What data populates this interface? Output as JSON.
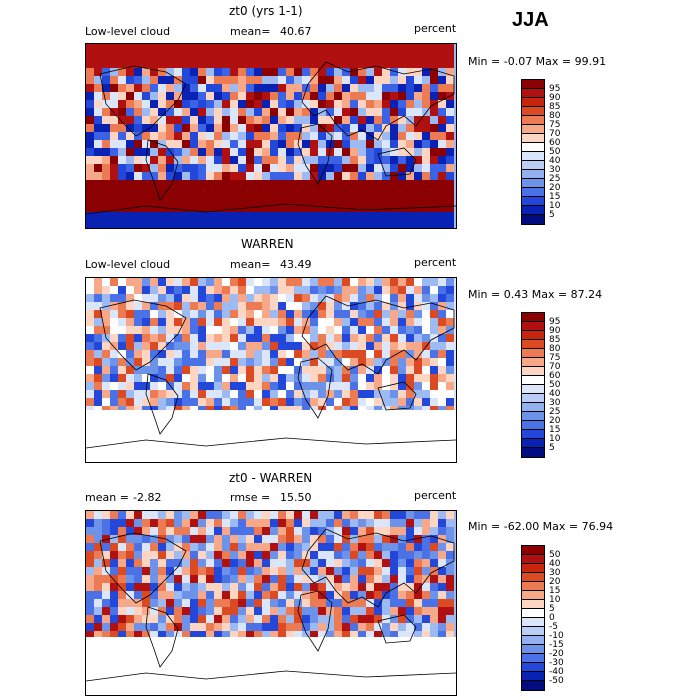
{
  "season": "JJA",
  "panels": [
    {
      "title": "zt0 (yrs 1-1)",
      "left_label": "Low-level cloud",
      "stat_label": "mean=",
      "stat_value": "40.67",
      "units": "percent",
      "minmax_label": "Min =   -0.07 Max =   99.91",
      "colorbar": {
        "labels": [
          "95",
          "90",
          "85",
          "80",
          "75",
          "70",
          "60",
          "50",
          "40",
          "30",
          "25",
          "20",
          "15",
          "10",
          "5"
        ],
        "colors": [
          "#8b0000",
          "#b01010",
          "#c8250f",
          "#dc4a24",
          "#ec7a52",
          "#f6a888",
          "#fcd6c2",
          "#ffffff",
          "#dbe6fa",
          "#b9cdf5",
          "#93b1f0",
          "#6d92ea",
          "#4a72e6",
          "#2347d9",
          "#0a22b4",
          "#000c80"
        ]
      },
      "map": {
        "colors": [
          "#0a22b4",
          "#3c63e6",
          "#9dbaf3",
          "#fcd6c2",
          "#ec7a52",
          "#b01010",
          "#2347d9",
          "#dbe6fa",
          "#f6a888",
          "#8b0000"
        ]
      }
    },
    {
      "title": "WARREN",
      "left_label": "Low-level cloud",
      "stat_label": "mean=",
      "stat_value": "43.49",
      "units": "percent",
      "minmax_label": "Min =    0.43 Max =   87.24",
      "colorbar": {
        "labels": [
          "95",
          "90",
          "85",
          "80",
          "75",
          "70",
          "60",
          "50",
          "40",
          "30",
          "25",
          "20",
          "15",
          "10",
          "5"
        ],
        "colors": [
          "#8b0000",
          "#b01010",
          "#c8250f",
          "#dc4a24",
          "#ec7a52",
          "#f6a888",
          "#fcd6c2",
          "#ffffff",
          "#dbe6fa",
          "#b9cdf5",
          "#93b1f0",
          "#6d92ea",
          "#4a72e6",
          "#2347d9",
          "#0a22b4",
          "#000c80"
        ]
      },
      "map": {
        "colors": [
          "#4a72e6",
          "#9dbaf3",
          "#dbe6fa",
          "#fcd6c2",
          "#f6a888",
          "#dc4a24",
          "#6d92ea",
          "#ffffff",
          "#2347d9",
          "#ec7a52"
        ]
      }
    },
    {
      "title": "zt0 - WARREN",
      "left_label": "mean =",
      "stat_label": "rmse =",
      "left_value": "-2.82",
      "stat_value": "15.50",
      "units": "percent",
      "minmax_label": "Min = -62.00 Max =   76.94",
      "colorbar": {
        "labels": [
          "50",
          "40",
          "30",
          "20",
          "15",
          "10",
          "5",
          "0",
          "-5",
          "-10",
          "-15",
          "-20",
          "-30",
          "-40",
          "-50"
        ],
        "colors": [
          "#8b0000",
          "#b01010",
          "#c8250f",
          "#dc4a24",
          "#ec7a52",
          "#f6a888",
          "#fcd6c2",
          "#ffffff",
          "#dbe6fa",
          "#b9cdf5",
          "#93b1f0",
          "#6d92ea",
          "#4a72e6",
          "#2347d9",
          "#0a22b4",
          "#000c80"
        ]
      },
      "map": {
        "colors": [
          "#2347d9",
          "#4a72e6",
          "#9dbaf3",
          "#dbe6fa",
          "#fcd6c2",
          "#ec7a52",
          "#dc4a24",
          "#6d92ea",
          "#b01010",
          "#f6a888"
        ]
      }
    }
  ]
}
